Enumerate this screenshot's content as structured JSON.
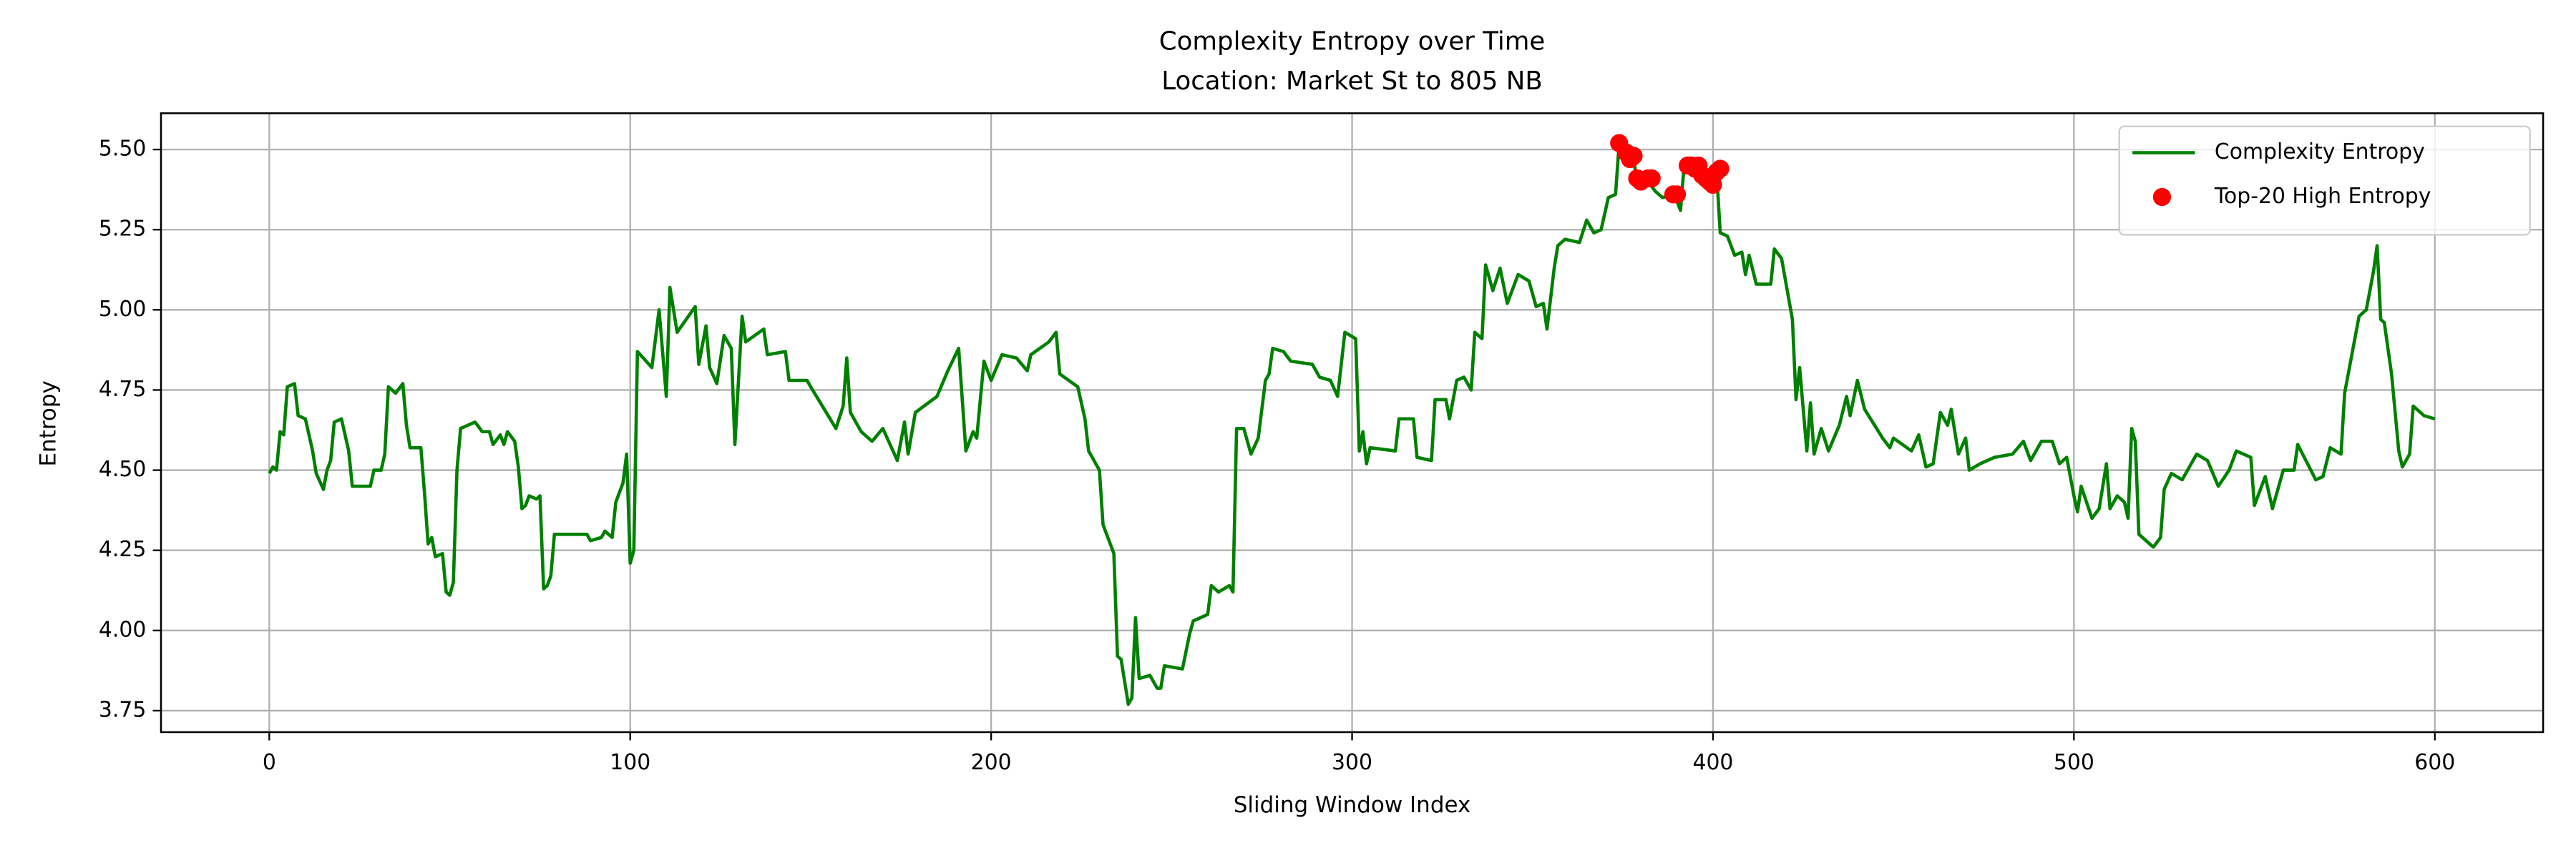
{
  "chart_data": {
    "type": "line",
    "title": "Complexity Entropy over Time",
    "subtitle": "Location: Market St to 805 NB",
    "x_label": "Sliding Window Index",
    "y_label": "Entropy",
    "xlim": [
      -30,
      630
    ],
    "ylim": [
      3.683,
      5.613
    ],
    "xticks": [
      0,
      100,
      200,
      300,
      400,
      500,
      600
    ],
    "yticks": [
      {
        "value": 3.75,
        "label": "3.75"
      },
      {
        "value": 4.0,
        "label": "4.00"
      },
      {
        "value": 4.25,
        "label": "4.25"
      },
      {
        "value": 4.5,
        "label": "4.50"
      },
      {
        "value": 4.75,
        "label": "4.75"
      },
      {
        "value": 5.0,
        "label": "5.00"
      },
      {
        "value": 5.25,
        "label": "5.25"
      },
      {
        "value": 5.5,
        "label": "5.50"
      }
    ],
    "grid": true,
    "legend": "upper right",
    "series": [
      {
        "name": "Complexity Entropy",
        "type": "line",
        "color": "#008000",
        "x": [
          0,
          1,
          2,
          3,
          4,
          5,
          7,
          8,
          10,
          12,
          13,
          15,
          16,
          17,
          18,
          20,
          22,
          23,
          28,
          29,
          31,
          32,
          33,
          35,
          37,
          38,
          39,
          42,
          43,
          44,
          45,
          46,
          48,
          49,
          50,
          51,
          52,
          53,
          57,
          59,
          61,
          62,
          64,
          65,
          66,
          68,
          69,
          70,
          71,
          72,
          74,
          75,
          76,
          77,
          78,
          79,
          88,
          89,
          92,
          93,
          95,
          96,
          98,
          99,
          100,
          101,
          102,
          106,
          108,
          110,
          111,
          113,
          118,
          119,
          121,
          122,
          124,
          126,
          128,
          129,
          131,
          132,
          137,
          138,
          143,
          144,
          149,
          150,
          157,
          159,
          160,
          161,
          164,
          167,
          170,
          174,
          176,
          177,
          179,
          185,
          188,
          191,
          193,
          195,
          196,
          198,
          200,
          203,
          207,
          210,
          211,
          216,
          218,
          219,
          224,
          226,
          227,
          230,
          231,
          234,
          235,
          236,
          238,
          239,
          240,
          241,
          244,
          246,
          247,
          248,
          253,
          255,
          256,
          260,
          261,
          263,
          266,
          267,
          268,
          270,
          272,
          274,
          276,
          277,
          278,
          281,
          283,
          289,
          291,
          294,
          296,
          297,
          298,
          301,
          302,
          303,
          304,
          305,
          312,
          313,
          317,
          318,
          322,
          323,
          326,
          327,
          329,
          331,
          333,
          334,
          336,
          337,
          339,
          341,
          343,
          345,
          346,
          349,
          351,
          353,
          354,
          356,
          357,
          359,
          363,
          365,
          367,
          369,
          371,
          373,
          374,
          376,
          378,
          379,
          380,
          382,
          384,
          386,
          389,
          390,
          391,
          392,
          394,
          396,
          398,
          399,
          401,
          402,
          404,
          406,
          408,
          409,
          410,
          412,
          416,
          417,
          419,
          422,
          423,
          424,
          426,
          427,
          428,
          430,
          432,
          435,
          437,
          438,
          440,
          442,
          447,
          449,
          450,
          455,
          457,
          459,
          461,
          463,
          465,
          466,
          468,
          470,
          471,
          474,
          478,
          483,
          486,
          488,
          491,
          494,
          496,
          498,
          500,
          501,
          502,
          505,
          507,
          509,
          510,
          512,
          514,
          515,
          516,
          517,
          518,
          520,
          522,
          524,
          525,
          527,
          530,
          534,
          537,
          540,
          543,
          545,
          549,
          550,
          553,
          555,
          558,
          561,
          562,
          567,
          569,
          571,
          574,
          575,
          579,
          581,
          583,
          584,
          585,
          586,
          588,
          590,
          591,
          593,
          594,
          597,
          600
        ],
        "values": [
          4.49,
          4.51,
          4.5,
          4.62,
          4.61,
          4.76,
          4.77,
          4.67,
          4.66,
          4.56,
          4.49,
          4.44,
          4.5,
          4.53,
          4.65,
          4.66,
          4.56,
          4.45,
          4.45,
          4.5,
          4.5,
          4.55,
          4.76,
          4.74,
          4.77,
          4.64,
          4.57,
          4.57,
          4.43,
          4.27,
          4.29,
          4.23,
          4.24,
          4.12,
          4.11,
          4.15,
          4.5,
          4.63,
          4.65,
          4.62,
          4.62,
          4.58,
          4.61,
          4.58,
          4.62,
          4.59,
          4.51,
          4.38,
          4.39,
          4.42,
          4.41,
          4.42,
          4.13,
          4.14,
          4.17,
          4.3,
          4.3,
          4.28,
          4.29,
          4.31,
          4.29,
          4.4,
          4.46,
          4.55,
          4.21,
          4.25,
          4.87,
          4.82,
          5.0,
          4.73,
          5.07,
          4.93,
          5.01,
          4.83,
          4.95,
          4.82,
          4.77,
          4.92,
          4.88,
          4.58,
          4.98,
          4.9,
          4.94,
          4.86,
          4.87,
          4.78,
          4.78,
          4.76,
          4.63,
          4.7,
          4.85,
          4.68,
          4.62,
          4.59,
          4.63,
          4.53,
          4.65,
          4.55,
          4.68,
          4.73,
          4.81,
          4.88,
          4.56,
          4.62,
          4.6,
          4.84,
          4.78,
          4.86,
          4.85,
          4.81,
          4.86,
          4.9,
          4.93,
          4.8,
          4.76,
          4.66,
          4.56,
          4.5,
          4.33,
          4.24,
          3.92,
          3.91,
          3.77,
          3.79,
          4.04,
          3.85,
          3.86,
          3.82,
          3.82,
          3.89,
          3.88,
          3.99,
          4.03,
          4.05,
          4.14,
          4.12,
          4.14,
          4.12,
          4.63,
          4.63,
          4.55,
          4.6,
          4.78,
          4.8,
          4.88,
          4.87,
          4.84,
          4.83,
          4.79,
          4.78,
          4.73,
          4.83,
          4.93,
          4.91,
          4.56,
          4.62,
          4.52,
          4.57,
          4.56,
          4.66,
          4.66,
          4.54,
          4.53,
          4.72,
          4.72,
          4.66,
          4.78,
          4.79,
          4.75,
          4.93,
          4.91,
          5.14,
          5.06,
          5.13,
          5.02,
          5.08,
          5.11,
          5.09,
          5.01,
          5.02,
          4.94,
          5.13,
          5.2,
          5.22,
          5.21,
          5.28,
          5.24,
          5.25,
          5.35,
          5.36,
          5.52,
          5.48,
          5.47,
          5.4,
          5.42,
          5.4,
          5.37,
          5.35,
          5.36,
          5.34,
          5.31,
          5.45,
          5.45,
          5.43,
          5.4,
          5.39,
          5.43,
          5.24,
          5.23,
          5.17,
          5.18,
          5.11,
          5.17,
          5.08,
          5.08,
          5.19,
          5.16,
          4.97,
          4.72,
          4.82,
          4.56,
          4.71,
          4.55,
          4.63,
          4.56,
          4.64,
          4.73,
          4.67,
          4.78,
          4.69,
          4.6,
          4.57,
          4.6,
          4.56,
          4.61,
          4.51,
          4.52,
          4.68,
          4.64,
          4.69,
          4.55,
          4.6,
          4.5,
          4.52,
          4.54,
          4.55,
          4.59,
          4.53,
          4.59,
          4.59,
          4.52,
          4.54,
          4.42,
          4.37,
          4.45,
          4.35,
          4.38,
          4.52,
          4.38,
          4.42,
          4.4,
          4.35,
          4.63,
          4.59,
          4.3,
          4.28,
          4.26,
          4.29,
          4.44,
          4.49,
          4.47,
          4.55,
          4.53,
          4.45,
          4.5,
          4.56,
          4.54,
          4.39,
          4.48,
          4.38,
          4.5,
          4.5,
          4.58,
          4.47,
          4.48,
          4.57,
          4.55,
          4.74,
          4.98,
          5.0,
          5.12,
          5.2,
          4.97,
          4.96,
          4.8,
          4.56,
          4.51,
          4.55,
          4.7,
          4.67,
          4.66
        ]
      },
      {
        "name": "Top-20 High Entropy",
        "type": "scatter",
        "color": "#ff0000",
        "x": [
          374,
          376,
          377,
          378,
          379,
          380,
          382,
          383,
          389,
          390,
          393,
          394,
          395,
          396,
          397,
          398,
          399,
          400,
          401,
          402
        ],
        "values": [
          5.52,
          5.49,
          5.47,
          5.48,
          5.41,
          5.4,
          5.41,
          5.41,
          5.36,
          5.36,
          5.45,
          5.45,
          5.44,
          5.45,
          5.42,
          5.41,
          5.4,
          5.39,
          5.43,
          5.44
        ]
      }
    ]
  }
}
